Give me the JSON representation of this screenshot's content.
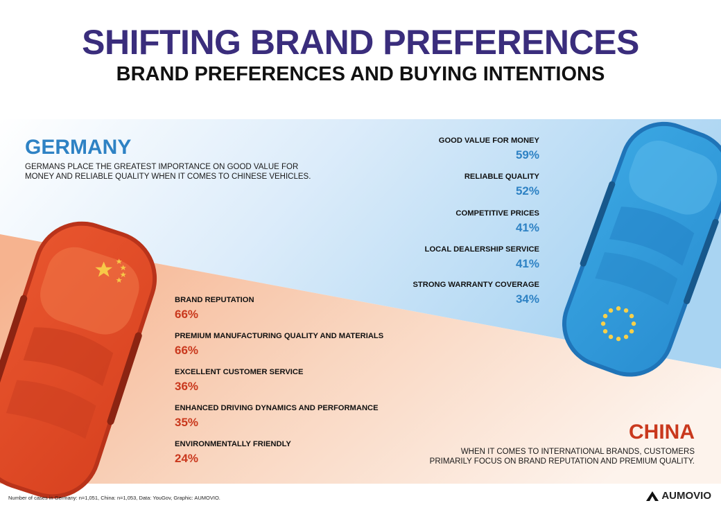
{
  "header": {
    "title": "SHIFTING BRAND PREFERENCES",
    "subtitle": "BRAND PREFERENCES AND BUYING INTENTIONS"
  },
  "germany": {
    "title": "GERMANY",
    "description_line1": "GERMANS PLACE THE GREATEST IMPORTANCE ON GOOD VALUE FOR",
    "description_line2": "MONEY AND RELIABLE QUALITY WHEN IT COMES TO CHINESE VEHICLES.",
    "color": "#2e82c4"
  },
  "china": {
    "title": "CHINA",
    "description_line1": "WHEN IT COMES TO INTERNATIONAL BRANDS, CUSTOMERS",
    "description_line2": "PRIMARILY FOCUS ON BRAND REPUTATION AND PREMIUM QUALITY.",
    "color": "#c9381d"
  },
  "chart_data": [
    {
      "type": "table",
      "region": "Germany",
      "categories": [
        "GOOD VALUE FOR MONEY",
        "RELIABLE QUALITY",
        "COMPETITIVE PRICES",
        "LOCAL DEALERSHIP SERVICE",
        "STRONG WARRANTY COVERAGE"
      ],
      "values": [
        59,
        52,
        41,
        41,
        34
      ],
      "labels": [
        "59%",
        "52%",
        "41%",
        "41%",
        "34%"
      ],
      "unit": "%"
    },
    {
      "type": "table",
      "region": "China",
      "categories": [
        "BRAND REPUTATION",
        "PREMIUM MANUFACTURING QUALITY AND MATERIALS",
        "EXCELLENT CUSTOMER SERVICE",
        "ENHANCED DRIVING DYNAMICS AND PERFORMANCE",
        "ENVIRONMENTALLY FRIENDLY"
      ],
      "values": [
        66,
        66,
        36,
        35,
        24
      ],
      "labels": [
        "66%",
        "66%",
        "36%",
        "35%",
        "24%"
      ],
      "unit": "%"
    }
  ],
  "footer": {
    "footnote": "Number of cases in Germany: n=1,051, China: n=1,053, Data: YouGov, Graphic: AUMOVIO.",
    "brand": "AUMOVIO"
  },
  "icons": [
    "china-flag-icon",
    "eu-flag-icon",
    "aumovio-logo-icon"
  ]
}
